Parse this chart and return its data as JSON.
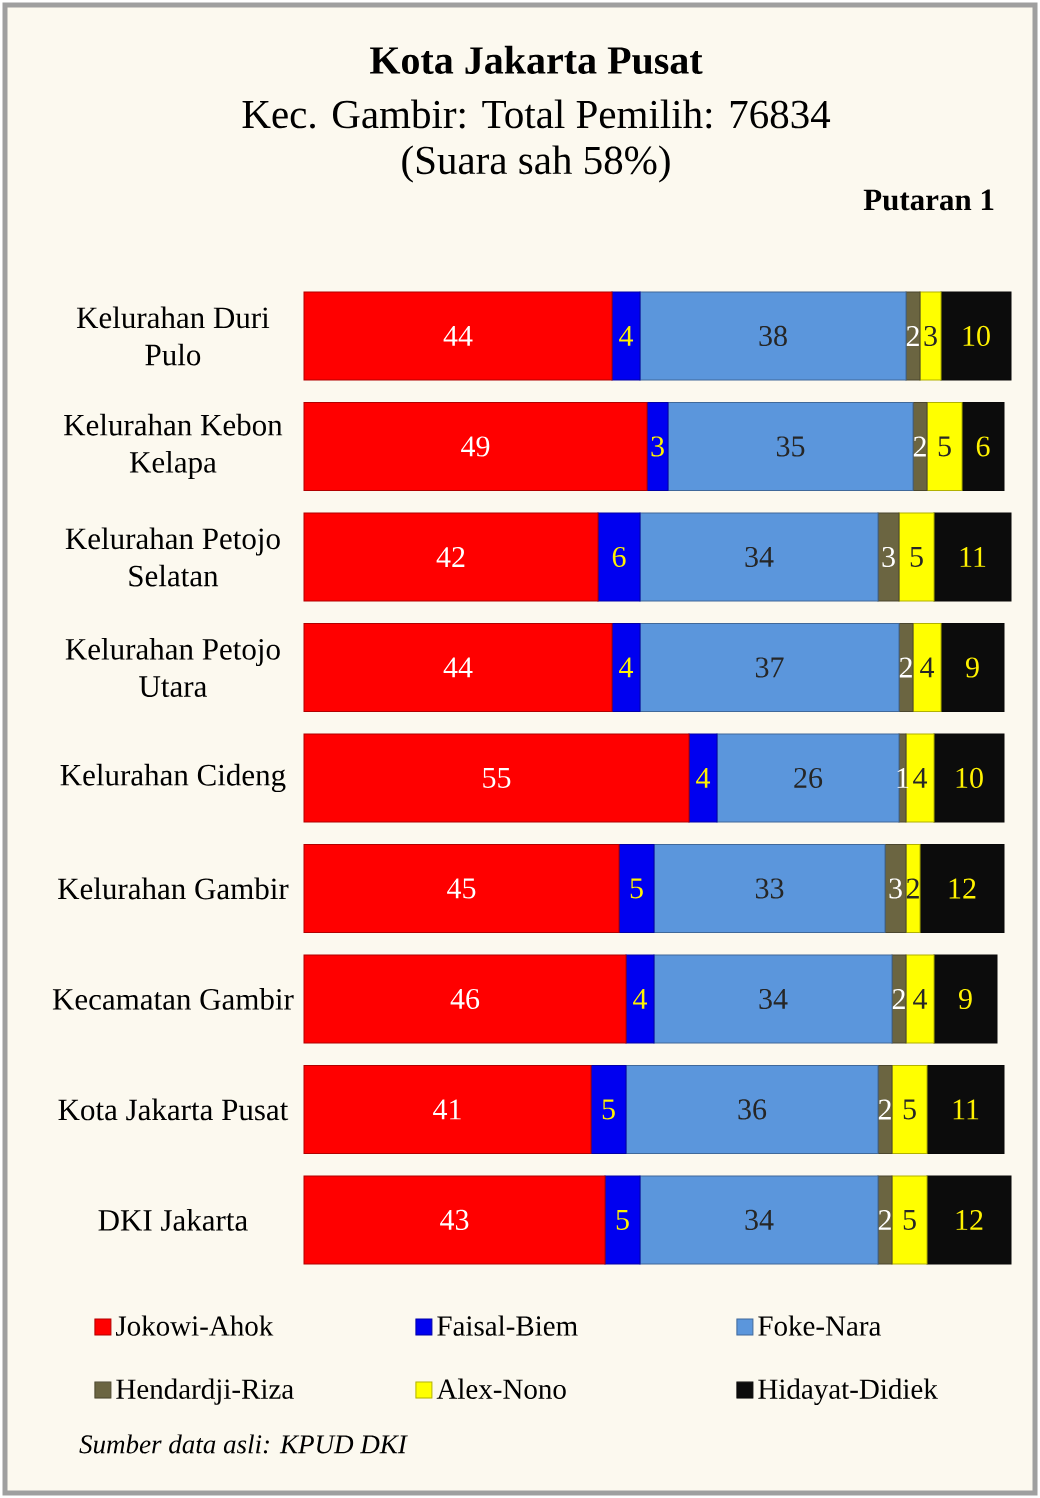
{
  "chart_data": {
    "type": "bar",
    "orientation": "horizontal",
    "stacked": true,
    "title": "Kota Jakarta Pusat",
    "subtitle": "Kec. Gambir: Total Pemilih: 76834",
    "annotations": [
      "(Suara sah 58%)",
      "Putaran 1",
      "Sumber data asli: KPUD DKI"
    ],
    "categories": [
      "Kelurahan Duri Pulo",
      "Kelurahan Kebon Kelapa",
      "Kelurahan Petojo Selatan",
      "Kelurahan Petojo Utara",
      "Kelurahan Cideng",
      "Kelurahan Gambir",
      "Kecamatan Gambir",
      "Kota Jakarta Pusat",
      "DKI Jakarta"
    ],
    "series": [
      {
        "name": "Jokowi-Ahok",
        "color": "#ff0000",
        "values": [
          44,
          49,
          42,
          44,
          55,
          45,
          46,
          41,
          43
        ]
      },
      {
        "name": "Faisal-Biem",
        "color": "#0000f0",
        "values": [
          4,
          3,
          6,
          4,
          4,
          5,
          4,
          5,
          5
        ]
      },
      {
        "name": "Foke-Nara",
        "color": "#5b96dc",
        "values": [
          38,
          35,
          34,
          37,
          26,
          33,
          34,
          36,
          34
        ]
      },
      {
        "name": "Hendardji-Riza",
        "color": "#6b6541",
        "values": [
          2,
          2,
          3,
          2,
          1,
          3,
          2,
          2,
          2
        ]
      },
      {
        "name": "Alex-Nono",
        "color": "#ffff00",
        "values": [
          3,
          5,
          5,
          4,
          4,
          2,
          4,
          5,
          5
        ]
      },
      {
        "name": "Hidayat-Didiek",
        "color": "#0c0c0c",
        "values": [
          10,
          6,
          11,
          9,
          10,
          12,
          9,
          11,
          12
        ]
      }
    ],
    "data_labels": true,
    "legend": "bottom",
    "tick_labels": "y"
  }
}
